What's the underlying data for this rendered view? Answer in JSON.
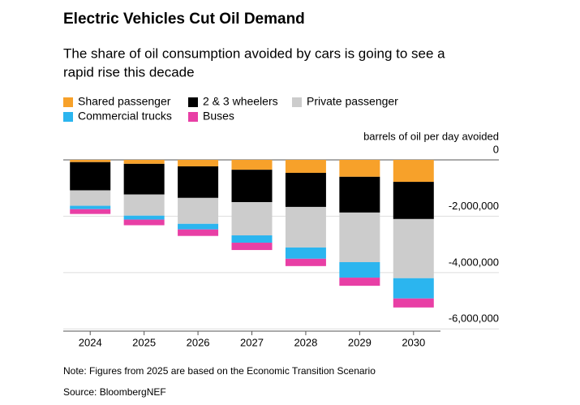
{
  "chart_data": {
    "type": "bar",
    "stacked": true,
    "title": "Electric Vehicles Cut Oil Demand",
    "subtitle": [
      "The share of oil consumption avoided by cars is going to see a",
      "rapid rise this decade"
    ],
    "y_axis_label": "barrels of oil per day avoided",
    "categories": [
      "2024",
      "2025",
      "2026",
      "2027",
      "2028",
      "2029",
      "2030"
    ],
    "series": [
      {
        "name": "Shared passenger",
        "color": "#f7a12a",
        "values": [
          -80000,
          -140000,
          -230000,
          -350000,
          -460000,
          -600000,
          -780000
        ]
      },
      {
        "name": "2 & 3 wheelers",
        "color": "#000000",
        "values": [
          -1000000,
          -1090000,
          -1120000,
          -1150000,
          -1210000,
          -1270000,
          -1320000
        ]
      },
      {
        "name": "Private passenger",
        "color": "#cccccc",
        "values": [
          -550000,
          -750000,
          -920000,
          -1180000,
          -1440000,
          -1760000,
          -2100000
        ]
      },
      {
        "name": "Commercial trucks",
        "color": "#2bb5ef",
        "values": [
          -120000,
          -140000,
          -200000,
          -260000,
          -400000,
          -550000,
          -720000
        ]
      },
      {
        "name": "Buses",
        "color": "#e83fa5",
        "values": [
          -170000,
          -200000,
          -230000,
          -260000,
          -260000,
          -290000,
          -320000
        ]
      }
    ],
    "ylim": [
      -6080000,
      0
    ],
    "yticks": [
      0,
      {
        "value": -2000000,
        "label": "-2,000,000"
      },
      {
        "value": -4000000,
        "label": "-4,000,000"
      },
      {
        "value": -6000000,
        "label": "-6,000,000"
      }
    ],
    "grid": true,
    "notes": [
      "Note: Figures from 2025 are based on the Economic Transition Scenario",
      "Source: BloombergNEF"
    ]
  }
}
